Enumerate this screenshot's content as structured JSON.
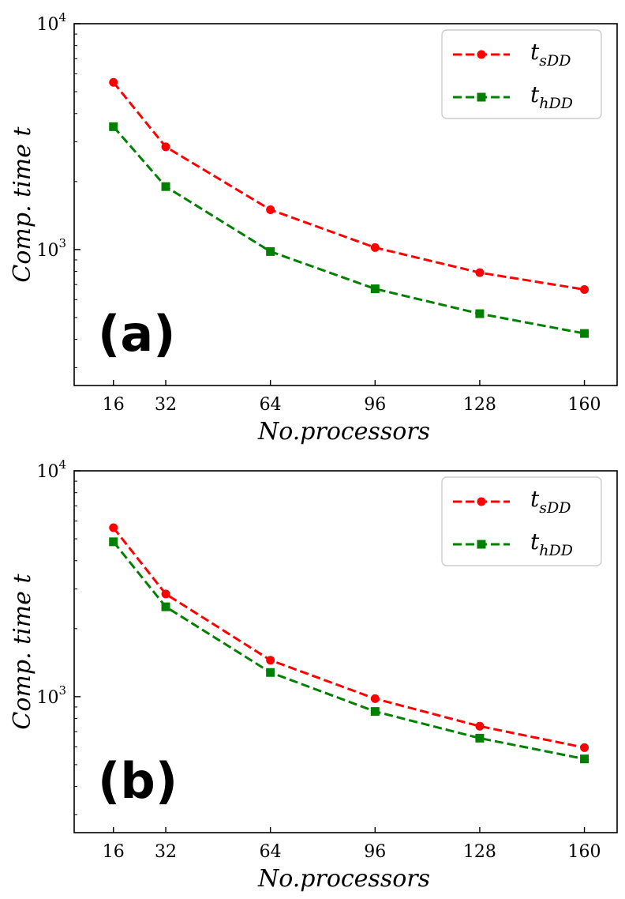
{
  "chart_data": [
    {
      "type": "line",
      "panel_label": "(a)",
      "xlabel": "No.processors",
      "ylabel": "Comp. time t",
      "yscale": "log",
      "ylim": [
        250,
        10000
      ],
      "xlim": [
        4,
        170
      ],
      "x": [
        16,
        32,
        64,
        96,
        128,
        160
      ],
      "x_tick_labels": [
        "16",
        "32",
        "64",
        "96",
        "128",
        "160"
      ],
      "y_tick_labels": [
        {
          "base": "10",
          "exp": "3",
          "value": 1000
        },
        {
          "base": "10",
          "exp": "4",
          "value": 10000
        }
      ],
      "legend_position": "top-right",
      "series": [
        {
          "name": "t",
          "subscript": "sDD",
          "color": "#ff0000",
          "marker": "circle",
          "linestyle": "dashed",
          "values": [
            5500,
            2850,
            1500,
            1020,
            790,
            665
          ]
        },
        {
          "name": "t",
          "subscript": "hDD",
          "color": "#008000",
          "marker": "square",
          "linestyle": "dashed",
          "values": [
            3500,
            1900,
            980,
            670,
            520,
            425
          ]
        }
      ]
    },
    {
      "type": "line",
      "panel_label": "(b)",
      "xlabel": "No.processors",
      "ylabel": "Comp. time t",
      "yscale": "log",
      "ylim": [
        250,
        10000
      ],
      "xlim": [
        4,
        170
      ],
      "x": [
        16,
        32,
        64,
        96,
        128,
        160
      ],
      "x_tick_labels": [
        "16",
        "32",
        "64",
        "96",
        "128",
        "160"
      ],
      "y_tick_labels": [
        {
          "base": "10",
          "exp": "3",
          "value": 1000
        },
        {
          "base": "10",
          "exp": "4",
          "value": 10000
        }
      ],
      "legend_position": "top-right",
      "series": [
        {
          "name": "t",
          "subscript": "sDD",
          "color": "#ff0000",
          "marker": "circle",
          "linestyle": "dashed",
          "values": [
            5600,
            2850,
            1450,
            980,
            740,
            595
          ]
        },
        {
          "name": "t",
          "subscript": "hDD",
          "color": "#008000",
          "marker": "square",
          "linestyle": "dashed",
          "values": [
            4850,
            2500,
            1280,
            860,
            655,
            530
          ]
        }
      ]
    }
  ]
}
